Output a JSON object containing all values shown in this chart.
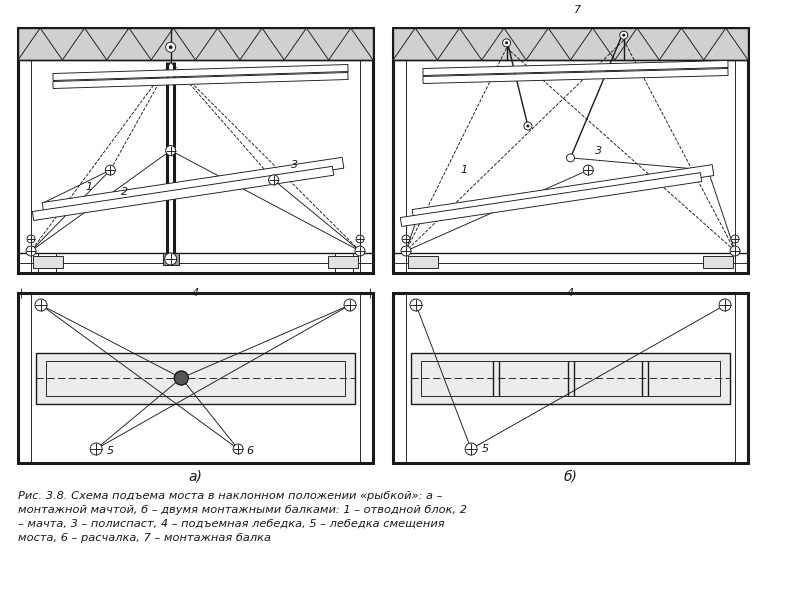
{
  "bg_color": "#ffffff",
  "line_color": "#1a1a1a",
  "fig_width": 8.0,
  "fig_height": 6.0,
  "caption_line1": "Рис. 3.8. Схема подъема моста в наклонном положении «рыбкой»: а –",
  "caption_line2": "монтажной мачтой, б – двумя монтажными балками: 1 – отводной блок, 2",
  "caption_line3": "– мачта, 3 – полиспаст, 4 – подъемная лебедка, 5 – лебедка смещения",
  "caption_line4": "моста, 6 – расчалка, 7 – монтажная балка",
  "label_a": "а)",
  "label_b": "б)"
}
